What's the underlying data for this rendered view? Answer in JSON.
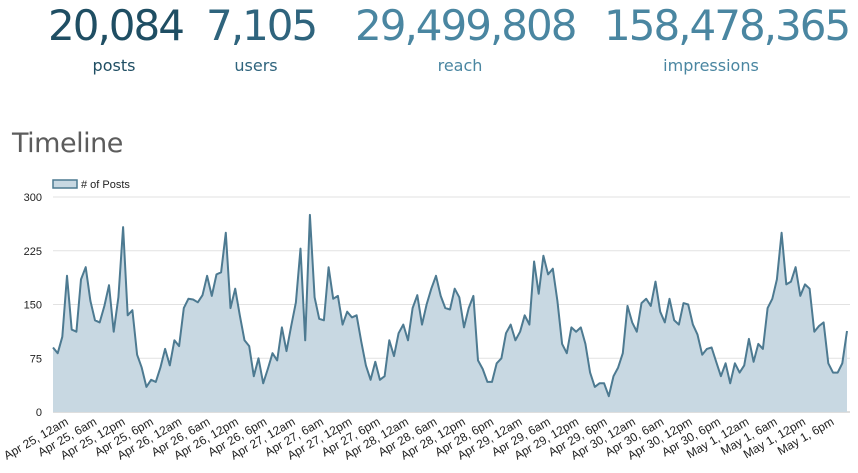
{
  "stats": [
    {
      "value": "20,084",
      "label": "posts",
      "color": "#1f4e63"
    },
    {
      "value": "7,105",
      "label": "users",
      "color": "#2f647d"
    },
    {
      "value": "29,499,808",
      "label": "reach",
      "color": "#4a86a1"
    },
    {
      "value": "158,478,365",
      "label": "impressions",
      "color": "#4a86a1"
    }
  ],
  "section_title": "Timeline",
  "chart_data": {
    "type": "area",
    "title": "",
    "xlabel": "",
    "ylabel": "",
    "ylim": [
      0,
      300
    ],
    "yticks": [
      0,
      75,
      150,
      225,
      300
    ],
    "grid": true,
    "legend_position": "top-left",
    "line_color": "#4d7a91",
    "fill_color": "#c8d8e2",
    "x_tick_labels": [
      "Apr 25, 12am",
      "Apr 25, 6am",
      "Apr 25, 12pm",
      "Apr 25, 6pm",
      "Apr 26, 12am",
      "Apr 26, 6am",
      "Apr 26, 12pm",
      "Apr 26, 6pm",
      "Apr 27, 12am",
      "Apr 27, 6am",
      "Apr 27, 12pm",
      "Apr 27, 6pm",
      "Apr 28, 12am",
      "Apr 28, 6am",
      "Apr 28, 12pm",
      "Apr 28, 6pm",
      "Apr 29, 12am",
      "Apr 29, 6am",
      "Apr 29, 12pm",
      "Apr 29, 6pm",
      "Apr 30, 12am",
      "Apr 30, 6am",
      "Apr 30, 12pm",
      "Apr 30, 6pm",
      "May 1, 12am",
      "May 1, 6am",
      "May 1, 12pm",
      "May 1, 6pm"
    ],
    "series": [
      {
        "name": "# of Posts",
        "values": [
          90,
          82,
          105,
          190,
          115,
          112,
          185,
          202,
          155,
          128,
          125,
          148,
          177,
          112,
          160,
          258,
          135,
          142,
          80,
          62,
          35,
          45,
          42,
          62,
          88,
          65,
          100,
          92,
          145,
          158,
          157,
          153,
          163,
          190,
          162,
          192,
          195,
          250,
          145,
          172,
          135,
          100,
          92,
          50,
          75,
          40,
          60,
          82,
          72,
          118,
          85,
          120,
          153,
          228,
          100,
          275,
          160,
          130,
          128,
          202,
          158,
          162,
          122,
          140,
          132,
          135,
          98,
          65,
          45,
          70,
          45,
          50,
          100,
          78,
          110,
          122,
          100,
          145,
          163,
          122,
          150,
          172,
          190,
          162,
          145,
          143,
          172,
          160,
          118,
          145,
          162,
          72,
          60,
          42,
          42,
          68,
          75,
          110,
          122,
          100,
          112,
          135,
          122,
          210,
          165,
          218,
          192,
          200,
          155,
          95,
          82,
          118,
          112,
          118,
          95,
          55,
          35,
          40,
          40,
          22,
          50,
          62,
          82,
          148,
          125,
          112,
          152,
          158,
          148,
          182,
          140,
          125,
          158,
          128,
          122,
          152,
          150,
          122,
          108,
          80,
          88,
          90,
          70,
          50,
          68,
          40,
          68,
          55,
          65,
          102,
          70,
          95,
          88,
          145,
          158,
          185,
          250,
          178,
          182,
          202,
          162,
          178,
          172,
          112,
          120,
          125,
          68,
          55,
          55,
          68,
          113
        ]
      }
    ]
  }
}
